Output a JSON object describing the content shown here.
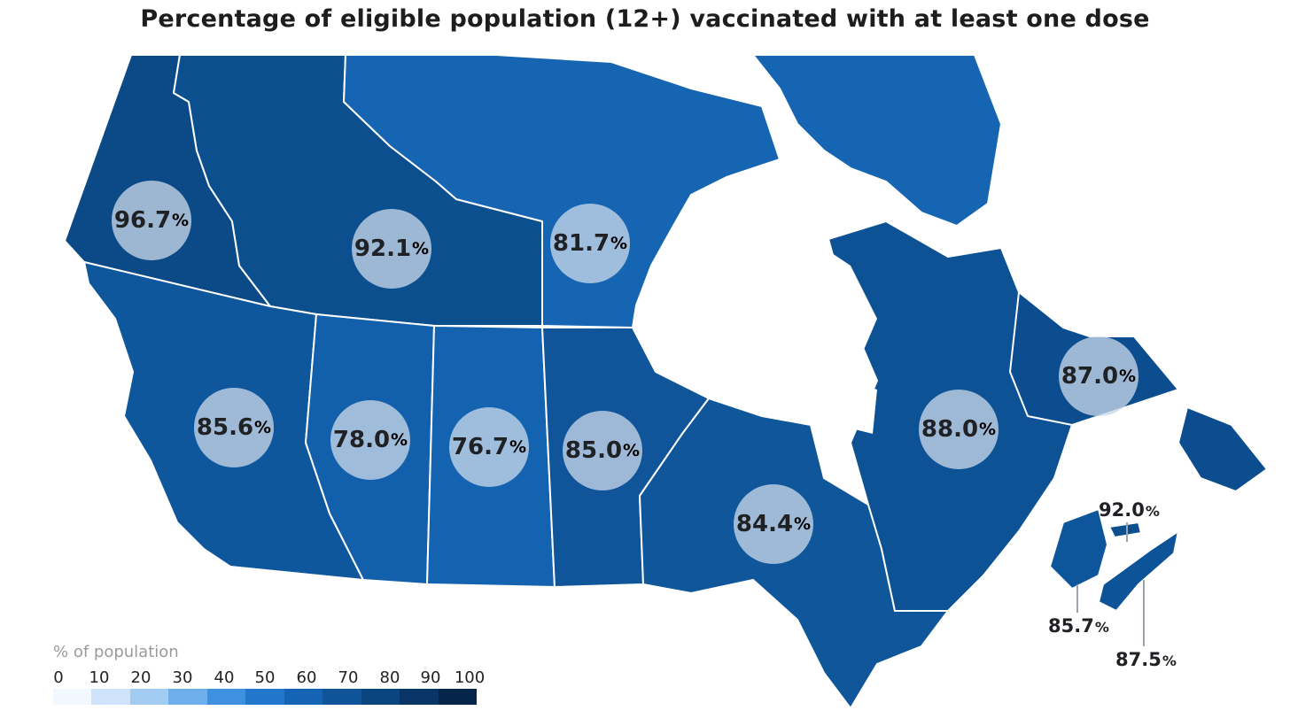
{
  "title": "Percentage of eligible population (12+) vaccinated with at least one dose",
  "colors": {
    "water": "#ffffff",
    "border": "#ffffff",
    "bubble": "#c6d6e8",
    "text": "#1f2124"
  },
  "regions": [
    {
      "id": "YT",
      "value": "96.7",
      "unit": "%",
      "color": "#0b4a86"
    },
    {
      "id": "NT",
      "value": "92.1",
      "unit": "%",
      "color": "#0c4f8e"
    },
    {
      "id": "NU",
      "value": "81.7",
      "unit": "%",
      "color": "#1565b3"
    },
    {
      "id": "BC",
      "value": "85.6",
      "unit": "%",
      "color": "#0e579d"
    },
    {
      "id": "AB",
      "value": "78.0",
      "unit": "%",
      "color": "#1260ab"
    },
    {
      "id": "SK",
      "value": "76.7",
      "unit": "%",
      "color": "#1463b0"
    },
    {
      "id": "MB",
      "value": "85.0",
      "unit": "%",
      "color": "#10559a"
    },
    {
      "id": "ON",
      "value": "84.4",
      "unit": "%",
      "color": "#0f569b"
    },
    {
      "id": "QC",
      "value": "88.0",
      "unit": "%",
      "color": "#0c5295"
    },
    {
      "id": "NL",
      "value": "87.0",
      "unit": "%",
      "color": "#0b4d8e"
    },
    {
      "id": "PE",
      "value": "92.0",
      "unit": "%",
      "color": "#0c4f8e"
    },
    {
      "id": "NB",
      "value": "85.7",
      "unit": "%",
      "color": "#0e569c"
    },
    {
      "id": "NS",
      "value": "87.5",
      "unit": "%",
      "color": "#0d5397"
    }
  ],
  "legend": {
    "title": "% of population",
    "ticks": [
      "0",
      "10",
      "20",
      "30",
      "40",
      "50",
      "60",
      "70",
      "80",
      "90",
      "100"
    ],
    "gradient": [
      "#f2f8ff",
      "#cfe4fb",
      "#a3ccf3",
      "#6eaeea",
      "#3f90de",
      "#2277cc",
      "#1564b3",
      "#0f5499",
      "#0b4580",
      "#083565",
      "#06254a"
    ]
  }
}
